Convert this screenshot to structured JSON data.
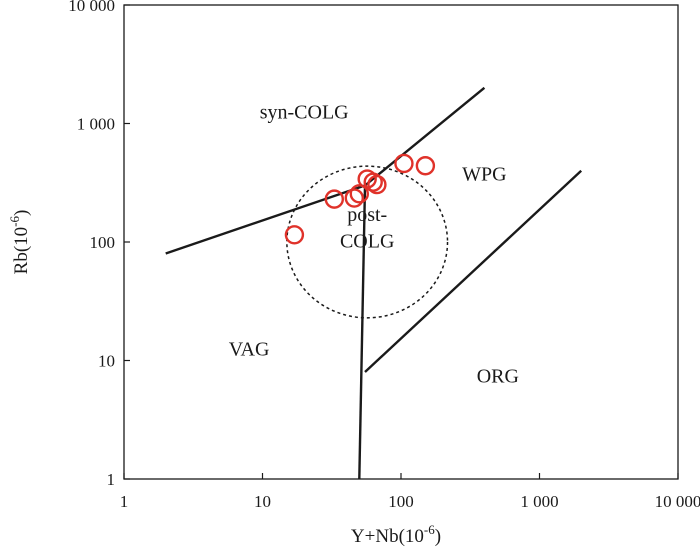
{
  "chart_data": {
    "type": "scatter",
    "scale": "log-log",
    "xlabel": "Y+Nb(10",
    "xlabel_exp": "-6",
    "xlabel_close": ")",
    "ylabel": "Rb(10",
    "ylabel_exp": "-6",
    "ylabel_close": ")",
    "xlim": [
      1,
      10000
    ],
    "ylim": [
      1,
      10000
    ],
    "x_ticks": [
      {
        "value": 1,
        "label": "1"
      },
      {
        "value": 10,
        "label": "10"
      },
      {
        "value": 100,
        "label": "100"
      },
      {
        "value": 1000,
        "label": "1 000"
      },
      {
        "value": 10000,
        "label": "10 000"
      }
    ],
    "y_ticks": [
      {
        "value": 1,
        "label": "1"
      },
      {
        "value": 10,
        "label": "10"
      },
      {
        "value": 100,
        "label": "100"
      },
      {
        "value": 1000,
        "label": "1 000"
      },
      {
        "value": 10000,
        "label": "10 000"
      }
    ],
    "boundaries": [
      {
        "name": "vag-syncolg-boundary",
        "points": [
          [
            2,
            80
          ],
          [
            55,
            300
          ]
        ]
      },
      {
        "name": "wpg-syncolg-boundary",
        "points": [
          [
            55,
            300
          ],
          [
            400,
            2000
          ]
        ]
      },
      {
        "name": "vag-orG-vertical-boundary",
        "points": [
          [
            50,
            1
          ],
          [
            55,
            300
          ]
        ]
      },
      {
        "name": "wpg-org-boundary",
        "points": [
          [
            55,
            8
          ],
          [
            2000,
            400
          ]
        ]
      }
    ],
    "post_colg_field": {
      "center": [
        57,
        100
      ],
      "x_half_decades": 0.58,
      "y_half_decades": 0.64
    },
    "regions": [
      {
        "name": "syn-colg",
        "label": "syn-COLG",
        "at": [
          20,
          1100
        ]
      },
      {
        "name": "wpg",
        "label": "WPG",
        "at": [
          400,
          330
        ]
      },
      {
        "name": "post-colg-line1",
        "label": "post-",
        "at": [
          57,
          150
        ]
      },
      {
        "name": "post-colg-line2",
        "label": "COLG",
        "at": [
          57,
          90
        ]
      },
      {
        "name": "vag",
        "label": "VAG",
        "at": [
          8,
          11
        ]
      },
      {
        "name": "org",
        "label": "ORG",
        "at": [
          500,
          6.5
        ]
      }
    ],
    "series": [
      {
        "name": "samples",
        "color": "#e0322a",
        "points": [
          [
            17,
            115
          ],
          [
            33,
            230
          ],
          [
            46,
            235
          ],
          [
            50,
            255
          ],
          [
            57,
            340
          ],
          [
            63,
            320
          ],
          [
            67,
            305
          ],
          [
            105,
            460
          ],
          [
            150,
            440
          ]
        ]
      }
    ]
  }
}
